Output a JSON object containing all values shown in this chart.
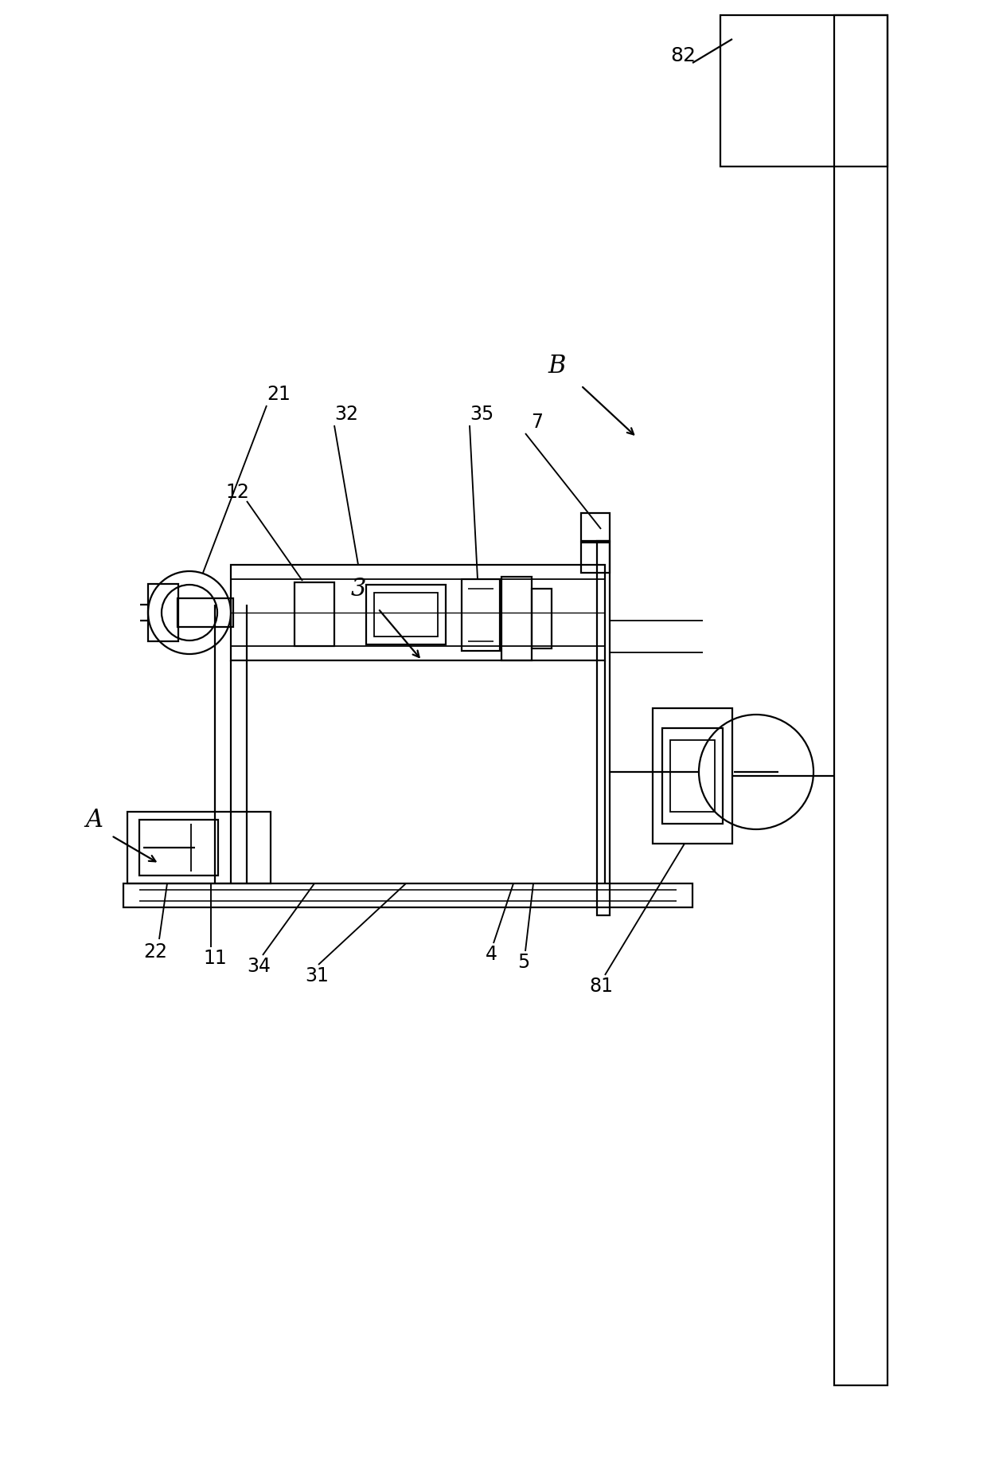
{
  "bg_color": "#ffffff",
  "line_color": "#000000",
  "lw": 1.6,
  "fig_width": 12.4,
  "fig_height": 18.4
}
